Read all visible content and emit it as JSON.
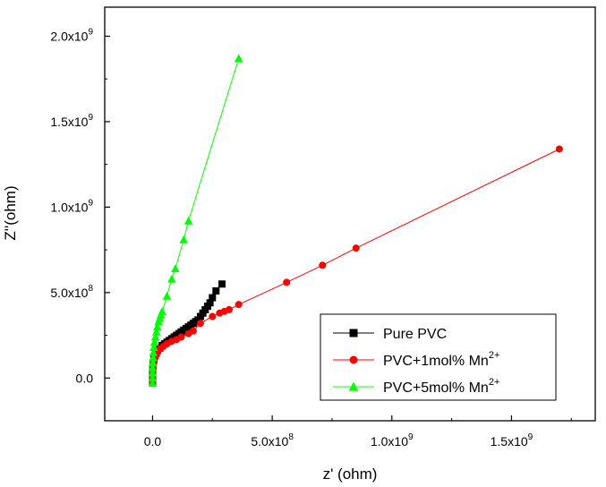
{
  "chart_data": {
    "type": "scatter",
    "xlabel": "z' (ohm)",
    "ylabel": "Z''(ohm)",
    "xlim": [
      -200000000,
      1850000000
    ],
    "ylim": [
      -250000000,
      2170000000
    ],
    "grid": false,
    "legend_position": "bottom-right",
    "x_ticks": [
      {
        "value": 0,
        "mantissa": "0.0",
        "exp": ""
      },
      {
        "value": 500000000,
        "mantissa": "5.0x10",
        "exp": "8"
      },
      {
        "value": 1000000000,
        "mantissa": "1.0x10",
        "exp": "9"
      },
      {
        "value": 1500000000,
        "mantissa": "1.5x10",
        "exp": "9"
      }
    ],
    "y_ticks": [
      {
        "value": 0,
        "mantissa": "0.0",
        "exp": ""
      },
      {
        "value": 500000000,
        "mantissa": "5.0x10",
        "exp": "8"
      },
      {
        "value": 1000000000,
        "mantissa": "1.0x10",
        "exp": "9"
      },
      {
        "value": 1500000000,
        "mantissa": "1.5x10",
        "exp": "9"
      },
      {
        "value": 2000000000,
        "mantissa": "2.0x10",
        "exp": "9"
      }
    ],
    "series": [
      {
        "name": "Pure PVC",
        "label_main": "Pure PVC",
        "label_sup": "",
        "color": "#000000",
        "marker": "square",
        "points": [
          [
            0,
            -30000000
          ],
          [
            0,
            0
          ],
          [
            0,
            30000000
          ],
          [
            1000000,
            60000000
          ],
          [
            3000000,
            90000000
          ],
          [
            6000000,
            110000000
          ],
          [
            10000000,
            130000000
          ],
          [
            15000000,
            145000000
          ],
          [
            20000000,
            160000000
          ],
          [
            30000000,
            175000000
          ],
          [
            40000000,
            190000000
          ],
          [
            50000000,
            200000000
          ],
          [
            60000000,
            210000000
          ],
          [
            70000000,
            220000000
          ],
          [
            80000000,
            230000000
          ],
          [
            90000000,
            240000000
          ],
          [
            100000000,
            250000000
          ],
          [
            110000000,
            260000000
          ],
          [
            120000000,
            270000000
          ],
          [
            130000000,
            280000000
          ],
          [
            140000000,
            290000000
          ],
          [
            150000000,
            300000000
          ],
          [
            160000000,
            310000000
          ],
          [
            170000000,
            320000000
          ],
          [
            180000000,
            330000000
          ],
          [
            190000000,
            340000000
          ],
          [
            200000000,
            360000000
          ],
          [
            210000000,
            380000000
          ],
          [
            220000000,
            400000000
          ],
          [
            230000000,
            420000000
          ],
          [
            240000000,
            440000000
          ],
          [
            250000000,
            470000000
          ],
          [
            265000000,
            510000000
          ],
          [
            290000000,
            550000000
          ]
        ]
      },
      {
        "name": "PVC+1mol% Mn2+",
        "label_main": "PVC+1mol% Mn",
        "label_sup": "2+",
        "color": "#ff0000",
        "marker": "circle",
        "points": [
          [
            0,
            -30000000
          ],
          [
            0,
            0
          ],
          [
            0,
            30000000
          ],
          [
            2000000,
            60000000
          ],
          [
            5000000,
            90000000
          ],
          [
            10000000,
            120000000
          ],
          [
            20000000,
            150000000
          ],
          [
            30000000,
            170000000
          ],
          [
            45000000,
            185000000
          ],
          [
            60000000,
            200000000
          ],
          [
            80000000,
            215000000
          ],
          [
            100000000,
            225000000
          ],
          [
            120000000,
            240000000
          ],
          [
            150000000,
            260000000
          ],
          [
            170000000,
            275000000
          ],
          [
            200000000,
            320000000
          ],
          [
            250000000,
            360000000
          ],
          [
            280000000,
            380000000
          ],
          [
            300000000,
            390000000
          ],
          [
            320000000,
            400000000
          ],
          [
            360000000,
            430000000
          ],
          [
            560000000,
            560000000
          ],
          [
            710000000,
            660000000
          ],
          [
            850000000,
            760000000
          ],
          [
            1700000000,
            1340000000
          ]
        ]
      },
      {
        "name": "PVC+5mol% Mn2+",
        "label_main": "PVC+5mol% Mn",
        "label_sup": "2+",
        "color": "#00ff00",
        "marker": "triangle",
        "points": [
          [
            0,
            -30000000
          ],
          [
            0,
            0
          ],
          [
            0,
            30000000
          ],
          [
            0,
            60000000
          ],
          [
            1000000,
            90000000
          ],
          [
            2000000,
            120000000
          ],
          [
            3000000,
            150000000
          ],
          [
            5000000,
            180000000
          ],
          [
            8000000,
            210000000
          ],
          [
            12000000,
            240000000
          ],
          [
            16000000,
            270000000
          ],
          [
            20000000,
            300000000
          ],
          [
            25000000,
            330000000
          ],
          [
            30000000,
            350000000
          ],
          [
            35000000,
            370000000
          ],
          [
            40000000,
            390000000
          ],
          [
            60000000,
            480000000
          ],
          [
            80000000,
            580000000
          ],
          [
            95000000,
            640000000
          ],
          [
            130000000,
            810000000
          ],
          [
            150000000,
            920000000
          ],
          [
            360000000,
            1870000000
          ]
        ]
      }
    ]
  }
}
